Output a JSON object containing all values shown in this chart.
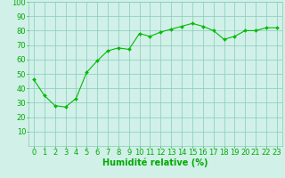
{
  "x": [
    0,
    1,
    2,
    3,
    4,
    5,
    6,
    7,
    8,
    9,
    10,
    11,
    12,
    13,
    14,
    15,
    16,
    17,
    18,
    19,
    20,
    21,
    22,
    23
  ],
  "y": [
    46,
    35,
    28,
    27,
    33,
    51,
    59,
    66,
    68,
    67,
    78,
    76,
    79,
    81,
    83,
    85,
    83,
    80,
    74,
    76,
    80,
    80,
    82,
    82
  ],
  "line_color": "#00bb00",
  "marker_color": "#00bb00",
  "bg_color": "#d0f0e8",
  "grid_color": "#88ccbb",
  "xlabel": "Humidité relative (%)",
  "xlabel_color": "#00aa00",
  "tick_color": "#00aa00",
  "ylim": [
    0,
    100
  ],
  "xlim": [
    -0.5,
    23.5
  ],
  "yticks": [
    10,
    20,
    30,
    40,
    50,
    60,
    70,
    80,
    90,
    100
  ],
  "xticks": [
    0,
    1,
    2,
    3,
    4,
    5,
    6,
    7,
    8,
    9,
    10,
    11,
    12,
    13,
    14,
    15,
    16,
    17,
    18,
    19,
    20,
    21,
    22,
    23
  ],
  "font_size": 6,
  "xlabel_fontsize": 7
}
